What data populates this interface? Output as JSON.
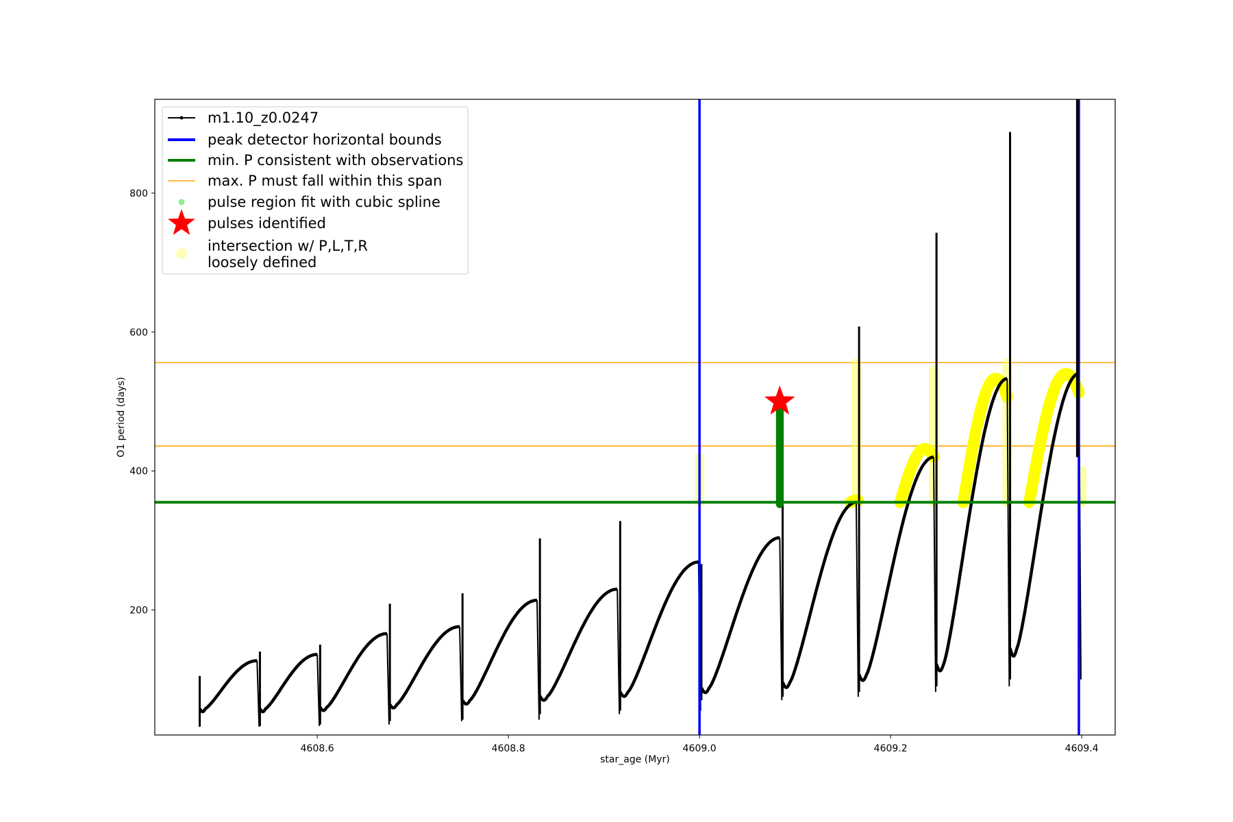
{
  "chart_data": {
    "type": "line",
    "title": "",
    "xlabel": "star_age (Myr)",
    "ylabel": "O1 period (days)",
    "xlim": [
      4608.43,
      4609.435
    ],
    "ylim": [
      20,
      935
    ],
    "xticks": [
      4608.6,
      4608.8,
      4609.0,
      4609.2,
      4609.4
    ],
    "yticks": [
      200,
      400,
      600,
      800
    ],
    "xtick_labels": [
      "4608.6",
      "4608.8",
      "4609.0",
      "4609.2",
      "4609.4"
    ],
    "ytick_labels": [
      "200",
      "400",
      "600",
      "800"
    ],
    "grid": false,
    "legend_position": "top-left",
    "legend": [
      {
        "label": "m1.10_z0.0247",
        "kind": "line-dot",
        "color": "#000000"
      },
      {
        "label": "peak detector horizontal bounds",
        "kind": "thick-line",
        "color": "#0000ff"
      },
      {
        "label": "min. P consistent with observations",
        "kind": "thick-line",
        "color": "#008000"
      },
      {
        "label": "max. P must fall within this span",
        "kind": "thin-line",
        "color": "#ffa500"
      },
      {
        "label": "pulse region fit with cubic spline",
        "kind": "dot",
        "color": "#90ee90"
      },
      {
        "label": "pulses identified",
        "kind": "star",
        "color": "#ff0000"
      },
      {
        "label": "intersection w/ P,L,T,R",
        "label2": "loosely defined",
        "kind": "big-dot",
        "color": "#ffff99"
      }
    ],
    "series_name": "m1.10_z0.0247",
    "series_color": "#000000",
    "cycles": [
      {
        "x0": 4608.477,
        "x1": 4608.537,
        "start": 58,
        "peak": 127,
        "spike_min": 32,
        "spike_max": 105
      },
      {
        "x0": 4608.54,
        "x1": 4608.6,
        "start": 58,
        "peak": 136,
        "spike_min": 33,
        "spike_max": 140
      },
      {
        "x0": 4608.603,
        "x1": 4608.673,
        "start": 60,
        "peak": 166,
        "spike_min": 35,
        "spike_max": 150
      },
      {
        "x0": 4608.676,
        "x1": 4608.749,
        "start": 64,
        "peak": 176,
        "spike_min": 40,
        "spike_max": 209
      },
      {
        "x0": 4608.752,
        "x1": 4608.83,
        "start": 70,
        "peak": 214,
        "spike_min": 42,
        "spike_max": 224
      },
      {
        "x0": 4608.833,
        "x1": 4608.914,
        "start": 76,
        "peak": 230,
        "spike_min": 50,
        "spike_max": 303
      },
      {
        "x0": 4608.917,
        "x1": 4608.999,
        "start": 82,
        "peak": 269,
        "spike_min": 55,
        "spike_max": 328
      },
      {
        "x0": 4609.002,
        "x1": 4609.084,
        "start": 88,
        "peak": 304,
        "spike_min": 70,
        "spike_max": 266
      },
      {
        "x0": 4609.087,
        "x1": 4609.164,
        "start": 96,
        "peak": 355,
        "spike_min": 75,
        "spike_max": 493
      },
      {
        "x0": 4609.167,
        "x1": 4609.245,
        "start": 107,
        "peak": 420,
        "spike_min": 82,
        "spike_max": 608
      },
      {
        "x0": 4609.248,
        "x1": 4609.322,
        "start": 122,
        "peak": 533,
        "spike_min": 90,
        "spike_max": 743
      },
      {
        "x0": 4609.325,
        "x1": 4609.397,
        "start": 145,
        "peak": 540,
        "spike_min": 100,
        "spike_max": 888
      }
    ],
    "blue_vlines": [
      4609.0,
      4609.397
    ],
    "blue_vline_extra": 4609.3955,
    "green_hline": 355,
    "orange_hlines": [
      436,
      556
    ],
    "red_star": {
      "x": 4609.084,
      "y": 500
    },
    "green_pulse": {
      "x": 4609.084,
      "y_min": 352,
      "y_max": 500
    },
    "yellow_bars": [
      {
        "x": 4609.0,
        "y_min": 355,
        "y_max": 420
      },
      {
        "x": 4609.164,
        "y_min": 355,
        "y_max": 555
      },
      {
        "x": 4609.245,
        "y_min": 355,
        "y_max": 545
      },
      {
        "x": 4609.322,
        "y_min": 355,
        "y_max": 555
      },
      {
        "x": 4609.4,
        "y_min": 355,
        "y_max": 400
      }
    ],
    "yellow_arcs": [
      {
        "x0": 4609.158,
        "x1": 4609.166,
        "y0": 355,
        "yp": 358
      },
      {
        "x0": 4609.21,
        "x1": 4609.245,
        "y0": 355,
        "yp": 432
      },
      {
        "x0": 4609.276,
        "x1": 4609.322,
        "y0": 355,
        "yp": 533
      },
      {
        "x0": 4609.345,
        "x1": 4609.397,
        "y0": 355,
        "yp": 540
      }
    ]
  }
}
